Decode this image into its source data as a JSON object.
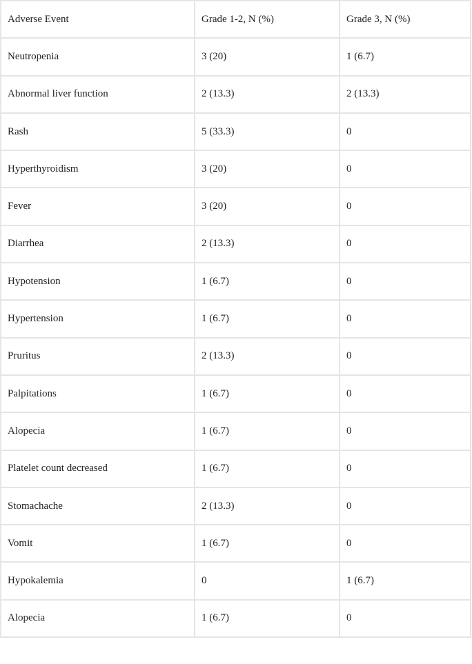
{
  "table": {
    "headers": [
      "Adverse Event",
      "Grade 1-2, N (%)",
      "Grade 3, N (%)"
    ],
    "rows": [
      [
        "Neutropenia",
        "3 (20)",
        "1 (6.7)"
      ],
      [
        "Abnormal liver function",
        "2 (13.3)",
        "2 (13.3)"
      ],
      [
        "Rash",
        "5 (33.3)",
        "0"
      ],
      [
        "Hyperthyroidism",
        "3 (20)",
        "0"
      ],
      [
        "Fever",
        "3 (20)",
        "0"
      ],
      [
        "Diarrhea",
        "2 (13.3)",
        "0"
      ],
      [
        "Hypotension",
        "1 (6.7)",
        "0"
      ],
      [
        "Hypertension",
        "1 (6.7)",
        "0"
      ],
      [
        "Pruritus",
        "2 (13.3)",
        "0"
      ],
      [
        "Palpitations",
        "1 (6.7)",
        "0"
      ],
      [
        "Alopecia",
        "1 (6.7)",
        "0"
      ],
      [
        "Platelet count decreased",
        "1 (6.7)",
        "0"
      ],
      [
        "Stomachache",
        "2 (13.3)",
        "0"
      ],
      [
        "Vomit",
        "1 (6.7)",
        "0"
      ],
      [
        "Hypokalemia",
        "0",
        "1 (6.7)"
      ],
      [
        "Alopecia",
        "1 (6.7)",
        "0"
      ]
    ]
  }
}
